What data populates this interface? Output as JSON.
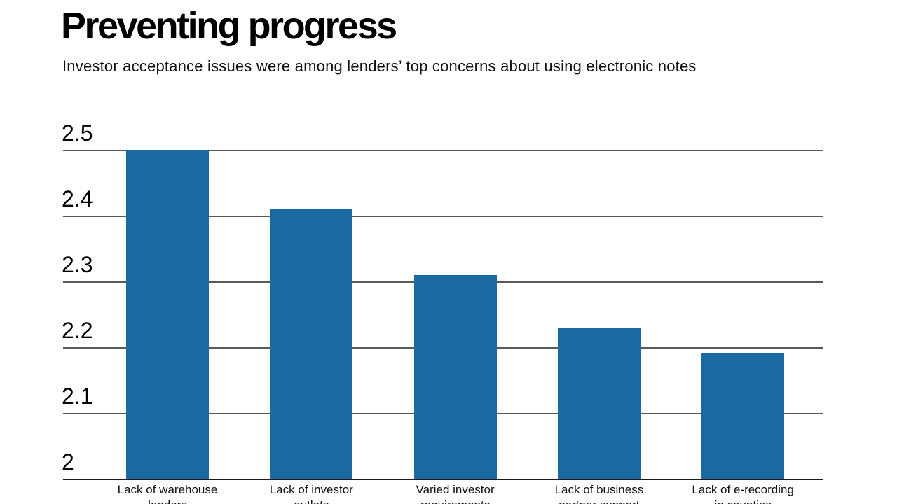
{
  "header": {
    "title": "Preventing progress",
    "subtitle": "Investor acceptance issues were among lenders’ top concerns about using electronic notes"
  },
  "chart_data": {
    "type": "bar",
    "title": "Preventing progress",
    "subtitle": "Investor acceptance issues were among lenders’ top concerns about using electronic notes",
    "categories": [
      "Lack of warehouse lenders",
      "Lack of investor outlets",
      "Varied investor requirements",
      "Lack of business partner support",
      "Lack of e-recording in counties"
    ],
    "category_label_lines": [
      [
        "Lack of warehouse",
        "lenders"
      ],
      [
        "Lack of investor",
        "outlets"
      ],
      [
        "Varied investor",
        "requirements"
      ],
      [
        "Lack of business",
        "partner support"
      ],
      [
        "Lack of e-recording",
        "in counties"
      ]
    ],
    "values": [
      2.5,
      2.41,
      2.31,
      2.23,
      2.19
    ],
    "xlabel": "",
    "ylabel": "",
    "ylim": [
      2,
      2.5
    ],
    "yticks": [
      {
        "value": 2.0,
        "label": "2"
      },
      {
        "value": 2.1,
        "label": "2.1"
      },
      {
        "value": 2.2,
        "label": "2.2"
      },
      {
        "value": 2.3,
        "label": "2.3"
      },
      {
        "value": 2.4,
        "label": "2.4"
      },
      {
        "value": 2.5,
        "label": "2.5"
      }
    ],
    "grid": true,
    "legend_position": "none",
    "colors": {
      "bar": "#1c69a1",
      "gridline": "#595959",
      "axis": "#1a1a1a",
      "text": "#000000"
    }
  }
}
